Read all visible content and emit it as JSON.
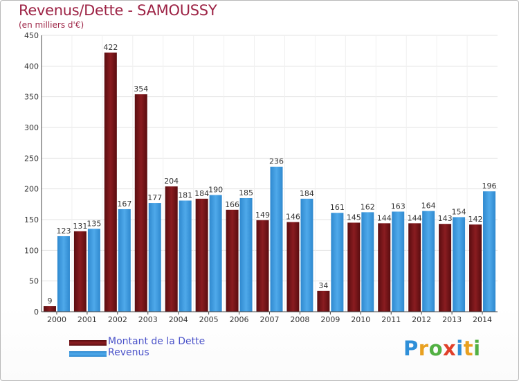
{
  "header": {
    "title": "Revenus/Dette - SAMOUSSY",
    "subtitle": "(en milliers d'€)"
  },
  "colors": {
    "dette": "#7a1416",
    "revenus": "#3d9be0",
    "axis_text": "#333333",
    "title": "#9d2345",
    "legend_text": "#4a52c9"
  },
  "chart_data": {
    "type": "bar",
    "title": "Revenus/Dette - SAMOUSSY",
    "ylabel": "(en milliers d'€)",
    "categories": [
      "2000",
      "2001",
      "2002",
      "2003",
      "2004",
      "2005",
      "2006",
      "2007",
      "2008",
      "2009",
      "2010",
      "2011",
      "2012",
      "2013",
      "2014"
    ],
    "series": [
      {
        "name": "Montant de la Dette",
        "color": "#7a1416",
        "values": [
          9,
          131,
          422,
          354,
          204,
          184,
          166,
          149,
          146,
          34,
          145,
          144,
          144,
          143,
          142
        ]
      },
      {
        "name": "Revenus",
        "color": "#3d9be0",
        "values": [
          123,
          135,
          167,
          177,
          181,
          190,
          185,
          236,
          184,
          161,
          162,
          163,
          164,
          154,
          196
        ]
      }
    ],
    "ylim": [
      0,
      450
    ],
    "yticks": [
      0,
      50,
      100,
      150,
      200,
      250,
      300,
      350,
      400,
      450
    ],
    "grid": true,
    "legend": "bottom-left"
  },
  "legend": {
    "items": [
      {
        "label": "Montant de la Dette",
        "color": "#7a1416"
      },
      {
        "label": "Revenus",
        "color": "#3d9be0"
      }
    ]
  },
  "logo": {
    "text": "Proxiti",
    "letters": [
      {
        "char": "P",
        "color": "#2f8fd8"
      },
      {
        "char": "r",
        "color": "#e8a020"
      },
      {
        "char": "o",
        "color": "#52b043"
      },
      {
        "char": "x",
        "color": "#e0402a"
      },
      {
        "char": "i",
        "color": "#2f8fd8"
      },
      {
        "char": "t",
        "color": "#e8a020"
      },
      {
        "char": "i",
        "color": "#52b043"
      }
    ]
  }
}
